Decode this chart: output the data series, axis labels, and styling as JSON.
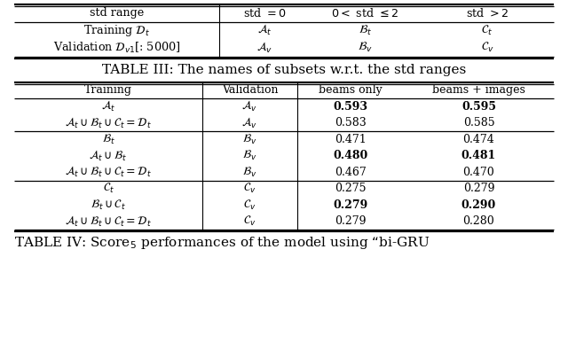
{
  "background_color": "#ffffff",
  "t3_header": [
    "std range",
    "std = 0",
    "0 < std ≤ 2",
    "std > 2"
  ],
  "t3_rows": [
    [
      "Training $\\mathcal{D}_t$",
      "$\\mathcal{A}_t$",
      "$\\mathcal{B}_t$",
      "$\\mathcal{C}_t$"
    ],
    [
      "Validation $\\mathcal{D}_{v1}$[: 5000]",
      "$\\mathcal{A}_v$",
      "$\\mathcal{B}_v$",
      "$\\mathcal{C}_v$"
    ]
  ],
  "t3_caption": "TABLE III: The names of subsets w.r.t. the std ranges",
  "t4_header": [
    "Training",
    "Validation",
    "beams only",
    "beams + images"
  ],
  "t4_rows": [
    [
      "$\\mathcal{A}_t$",
      "$\\mathcal{A}_v$",
      "0.593",
      "0.595",
      true
    ],
    [
      "$\\mathcal{A}_t \\cup \\mathcal{B}_t \\cup \\mathcal{C}_t = \\mathcal{D}_t$",
      "$\\mathcal{A}_v$",
      "0.583",
      "0.585",
      false
    ],
    [
      "$\\mathcal{B}_t$",
      "$\\mathcal{B}_v$",
      "0.471",
      "0.474",
      false
    ],
    [
      "$\\mathcal{A}_t \\cup \\mathcal{B}_t$",
      "$\\mathcal{B}_v$",
      "0.480",
      "0.481",
      true
    ],
    [
      "$\\mathcal{A}_t \\cup \\mathcal{B}_t \\cup \\mathcal{C}_t = \\mathcal{D}_t$",
      "$\\mathcal{B}_v$",
      "0.467",
      "0.470",
      false
    ],
    [
      "$\\mathcal{C}_t$",
      "$\\mathcal{C}_v$",
      "0.275",
      "0.279",
      false
    ],
    [
      "$\\mathcal{B}_t \\cup \\mathcal{C}_t$",
      "$\\mathcal{C}_v$",
      "0.279",
      "0.290",
      true
    ],
    [
      "$\\mathcal{A}_t \\cup \\mathcal{B}_t \\cup \\mathcal{C}_t = \\mathcal{D}_t$",
      "$\\mathcal{C}_v$",
      "0.279",
      "0.280",
      false
    ]
  ],
  "t4_group_seps": [
    2,
    5
  ],
  "t4_caption": "TABLE IV: Score$_5$ performances of the model using “bi-GRU"
}
